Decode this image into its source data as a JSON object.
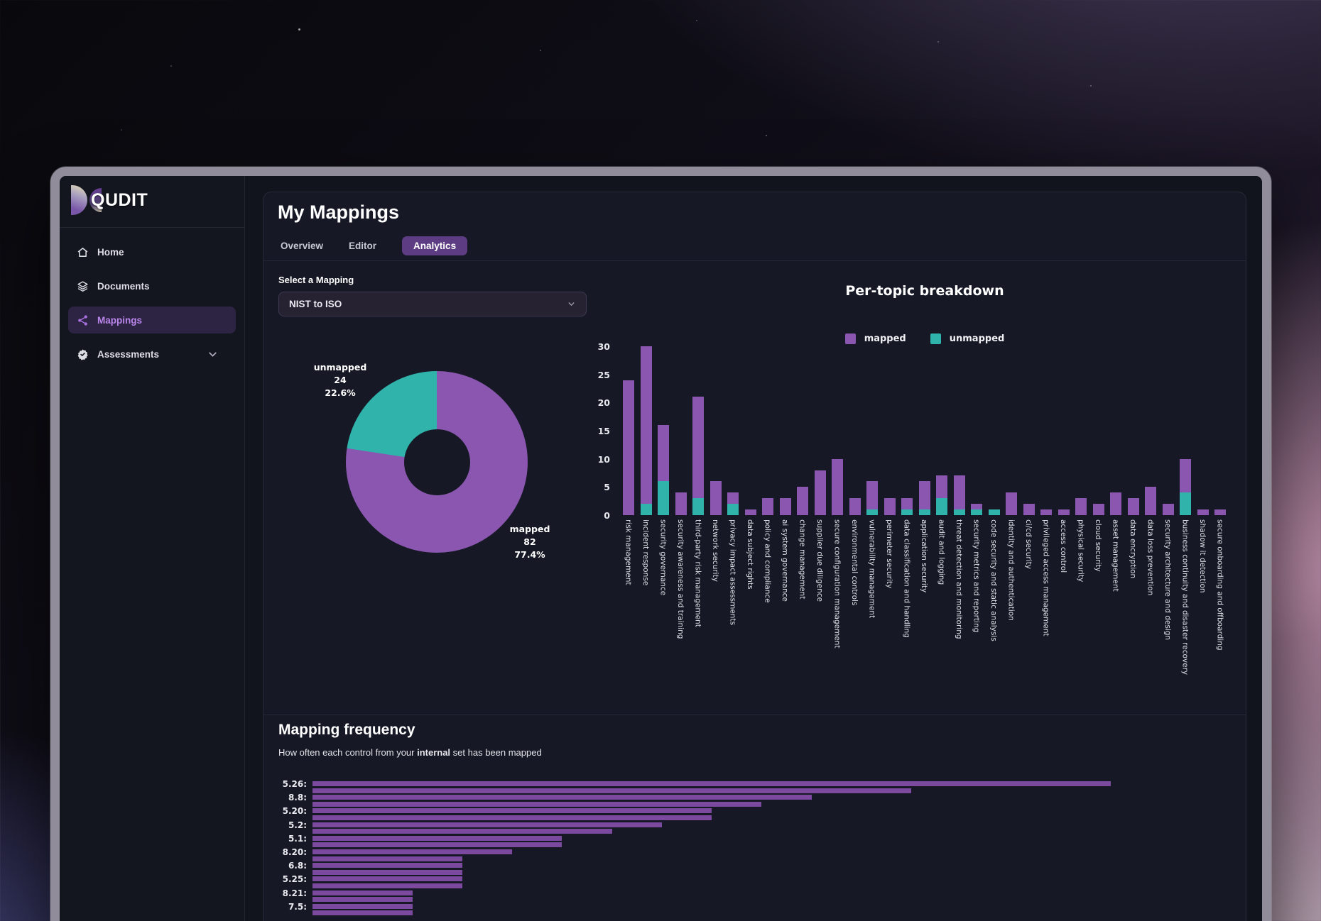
{
  "app": {
    "logo_text": "QUDIT",
    "sidebar": {
      "items": [
        {
          "label": "Home",
          "icon": "home-icon"
        },
        {
          "label": "Documents",
          "icon": "layers-icon"
        },
        {
          "label": "Mappings",
          "icon": "share-icon",
          "active": true
        },
        {
          "label": "Assessments",
          "icon": "badge-check-icon",
          "has_submenu": true
        }
      ]
    },
    "page": {
      "title": "My Mappings",
      "tabs": [
        {
          "label": "Overview"
        },
        {
          "label": "Editor"
        },
        {
          "label": "Analytics",
          "active": true
        }
      ],
      "select_label": "Select a Mapping",
      "select_value": "NIST to ISO",
      "freq_title": "Mapping frequency",
      "freq_subtitle_prefix": "How often each control from your ",
      "freq_subtitle_bold": "internal",
      "freq_subtitle_suffix": " set has been mapped"
    }
  },
  "colors": {
    "mapped": "#8a56b0",
    "unmapped": "#2fb3ab",
    "freq_bar": "#7b4a9e",
    "active_pill": "#5d3c84",
    "sidebar_active_bg": "#2d2342"
  },
  "chart_data": [
    {
      "type": "pie",
      "donut": true,
      "slices": [
        {
          "label": "mapped",
          "value": 82,
          "pct": 77.4,
          "pct_text": "77.4%",
          "color": "#8a56b0"
        },
        {
          "label": "unmapped",
          "value": 24,
          "pct": 22.6,
          "pct_text": "22.6%",
          "color": "#2fb3ab"
        }
      ]
    },
    {
      "type": "bar",
      "stacked": true,
      "title": "Per-topic breakdown",
      "legend_position": "top-center",
      "ylim": [
        0,
        30
      ],
      "yticks": [
        0,
        5,
        10,
        15,
        20,
        25,
        30
      ],
      "grid": false,
      "categories": [
        "risk management",
        "incident response",
        "security governance",
        "security awareness and training",
        "third-party risk management",
        "network security",
        "privacy impact assessments",
        "data subject rights",
        "policy and compliance",
        "ai system governance",
        "change management",
        "supplier due diligence",
        "secure configuration management",
        "environmental controls",
        "vulnerability management",
        "perimeter security",
        "data classification and handling",
        "application security",
        "audit and logging",
        "threat detection and monitoring",
        "security metrics and reporting",
        "code security and static analysis",
        "identity and authentication",
        "ci/cd security",
        "privileged access management",
        "access control",
        "physical security",
        "cloud security",
        "asset management",
        "data encryption",
        "data loss prevention",
        "security architecture and design",
        "business continuity and disaster recovery",
        "shadow it detection",
        "secure onboarding and offboarding"
      ],
      "series": [
        {
          "name": "mapped",
          "color": "#8a56b0",
          "values": [
            24,
            28,
            10,
            4,
            18,
            6,
            2,
            1,
            3,
            3,
            5,
            8,
            10,
            3,
            5,
            3,
            2,
            5,
            4,
            6,
            1,
            0,
            4,
            2,
            1,
            1,
            3,
            2,
            4,
            3,
            5,
            2,
            6,
            1,
            1
          ]
        },
        {
          "name": "unmapped",
          "color": "#2fb3ab",
          "values": [
            0,
            2,
            6,
            0,
            3,
            0,
            2,
            0,
            0,
            0,
            0,
            0,
            0,
            0,
            1,
            0,
            1,
            1,
            3,
            1,
            1,
            1,
            0,
            0,
            0,
            0,
            0,
            0,
            0,
            0,
            0,
            0,
            4,
            0,
            0
          ]
        }
      ]
    },
    {
      "type": "bar",
      "horizontal": true,
      "title": "Mapping frequency",
      "xlim": [
        0,
        16
      ],
      "color": "#7b4a9e",
      "tick_labels": [
        "5.26:",
        "8.8:",
        "5.20:",
        "5.2:",
        "5.1:",
        "8.20:",
        "6.8:",
        "5.25:",
        "8.21:",
        "7.5:"
      ],
      "values": [
        16,
        12,
        10,
        9,
        8,
        8,
        7,
        6,
        5,
        5,
        4,
        3,
        3,
        3,
        3,
        3,
        2,
        2,
        2,
        2
      ]
    }
  ]
}
